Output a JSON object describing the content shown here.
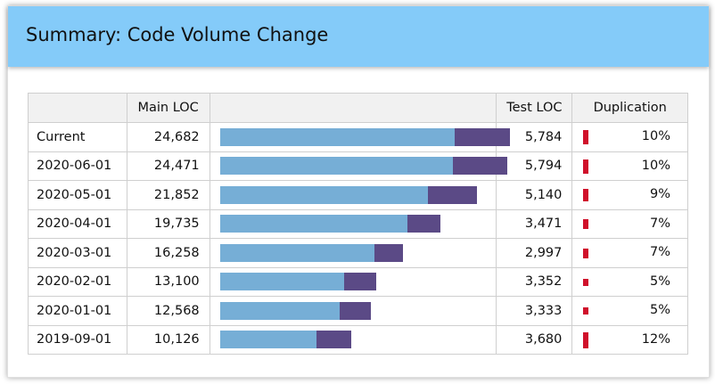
{
  "header": {
    "title": "Summary: Code Volume Change"
  },
  "table": {
    "columns": [
      "",
      "Main LOC",
      "",
      "Test LOC",
      "Duplication"
    ],
    "bar_scale_max": 30000,
    "rows": [
      {
        "label": "Current",
        "main": "24,682",
        "main_value": 24682,
        "test": "5,784",
        "test_value": 5784,
        "dup": "10%",
        "dup_value": 10
      },
      {
        "label": "2020-06-01",
        "main": "24,471",
        "main_value": 24471,
        "test": "5,794",
        "test_value": 5794,
        "dup": "10%",
        "dup_value": 10
      },
      {
        "label": "2020-05-01",
        "main": "21,852",
        "main_value": 21852,
        "test": "5,140",
        "test_value": 5140,
        "dup": "9%",
        "dup_value": 9
      },
      {
        "label": "2020-04-01",
        "main": "19,735",
        "main_value": 19735,
        "test": "3,471",
        "test_value": 3471,
        "dup": "7%",
        "dup_value": 7
      },
      {
        "label": "2020-03-01",
        "main": "16,258",
        "main_value": 16258,
        "test": "2,997",
        "test_value": 2997,
        "dup": "7%",
        "dup_value": 7
      },
      {
        "label": "2020-02-01",
        "main": "13,100",
        "main_value": 13100,
        "test": "3,352",
        "test_value": 3352,
        "dup": "5%",
        "dup_value": 5
      },
      {
        "label": "2020-01-01",
        "main": "12,568",
        "main_value": 12568,
        "test": "3,333",
        "test_value": 3333,
        "dup": "5%",
        "dup_value": 5
      },
      {
        "label": "2019-09-01",
        "main": "10,126",
        "main_value": 10126,
        "test": "3,680",
        "test_value": 3680,
        "dup": "12%",
        "dup_value": 12
      }
    ]
  },
  "colors": {
    "header_bg": "#84cbf9",
    "main_bar": "#76aed6",
    "test_bar": "#5b4a86",
    "dup_bar": "#d0112b"
  }
}
